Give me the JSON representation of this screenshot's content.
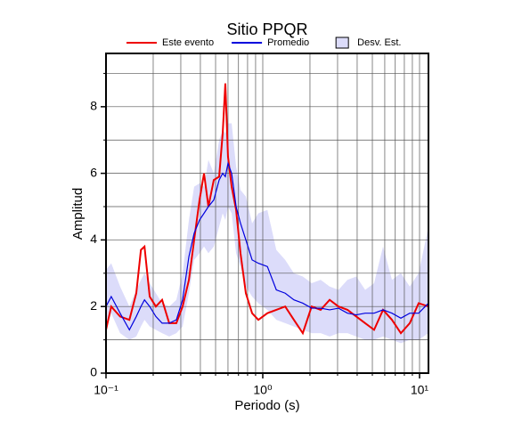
{
  "chart_data": {
    "type": "line",
    "title": "Sitio PPQR",
    "x_label": "Periodo (s)",
    "y_label": "Amplitud",
    "x_scale": "log",
    "grid": true,
    "legend": "top",
    "xlim": [
      0.1,
      11.4
    ],
    "ylim": [
      0,
      9.6
    ],
    "xticks": [
      {
        "value": 0.1,
        "label": "10⁻¹"
      },
      {
        "value": 1,
        "label": "10⁰"
      },
      {
        "value": 10,
        "label": "10¹"
      }
    ],
    "xminor_ticks": [
      0.2,
      0.3,
      0.4,
      0.5,
      0.6,
      0.7,
      0.8,
      0.9,
      2,
      3,
      4,
      5,
      6,
      7,
      8,
      9
    ],
    "yticks": [
      0,
      2,
      4,
      6,
      8
    ],
    "yminor_ticks": [
      1,
      3,
      5,
      7,
      9
    ],
    "x": [
      0.1,
      0.108,
      0.123,
      0.141,
      0.156,
      0.167,
      0.176,
      0.19,
      0.208,
      0.228,
      0.253,
      0.281,
      0.308,
      0.338,
      0.365,
      0.395,
      0.422,
      0.45,
      0.487,
      0.527,
      0.555,
      0.577,
      0.6,
      0.633,
      0.676,
      0.721,
      0.78,
      0.855,
      0.937,
      1.07,
      1.22,
      1.39,
      1.58,
      1.8,
      2.05,
      2.34,
      2.67,
      3.04,
      3.47,
      3.95,
      4.5,
      5.13,
      5.85,
      6.67,
      7.6,
      8.66,
      9.87,
      11.4
    ],
    "band": {
      "name": "Desv. Est.",
      "color": "#dcdcfa",
      "lower": [
        1.3,
        1.8,
        1.2,
        1.0,
        1.1,
        1.4,
        1.6,
        1.4,
        1.3,
        1.2,
        1.1,
        1.2,
        1.4,
        2.4,
        3.4,
        3.6,
        3.8,
        3.6,
        3.8,
        4.4,
        4.8,
        4.6,
        5.0,
        4.8,
        3.6,
        3.2,
        2.6,
        2.3,
        2.1,
        1.9,
        1.6,
        1.5,
        1.4,
        1.3,
        1.2,
        1.2,
        1.1,
        1.2,
        1.2,
        1.1,
        1.0,
        1.0,
        1.1,
        1.0,
        0.9,
        1.0,
        1.0,
        1.2
      ],
      "upper": [
        3.1,
        3.3,
        2.6,
        2.0,
        2.5,
        2.8,
        3.0,
        2.7,
        2.4,
        2.1,
        2.0,
        2.2,
        3.0,
        4.6,
        5.6,
        5.7,
        5.6,
        6.4,
        6.0,
        7.0,
        7.3,
        7.2,
        7.5,
        7.5,
        6.2,
        5.5,
        5.3,
        4.5,
        4.8,
        4.9,
        3.7,
        3.4,
        3.0,
        2.9,
        2.7,
        2.8,
        2.6,
        2.5,
        2.8,
        2.9,
        2.5,
        2.7,
        3.8,
        2.8,
        3.0,
        2.6,
        3.0,
        4.4
      ]
    },
    "series": [
      {
        "name": "Este evento",
        "color": "#ee0000",
        "values": [
          1.3,
          2.0,
          1.7,
          1.6,
          2.4,
          3.7,
          3.8,
          2.3,
          2.0,
          2.2,
          1.5,
          1.5,
          2.0,
          2.8,
          4.0,
          5.2,
          6.0,
          5.0,
          5.8,
          5.9,
          7.2,
          8.7,
          6.5,
          5.6,
          4.9,
          3.6,
          2.4,
          1.8,
          1.6,
          1.8,
          1.9,
          2.0,
          1.6,
          1.2,
          2.0,
          1.9,
          2.2,
          2.0,
          1.9,
          1.7,
          1.5,
          1.3,
          1.9,
          1.6,
          1.2,
          1.5,
          2.1,
          2.0
        ]
      },
      {
        "name": "Promedio",
        "color": "#0000dd",
        "values": [
          2.0,
          2.3,
          1.8,
          1.3,
          1.7,
          2.0,
          2.2,
          2.0,
          1.7,
          1.5,
          1.5,
          1.6,
          2.2,
          3.5,
          4.2,
          4.6,
          4.8,
          5.0,
          5.2,
          5.8,
          6.0,
          5.9,
          6.3,
          6.0,
          5.0,
          4.5,
          4.0,
          3.4,
          3.3,
          3.2,
          2.5,
          2.4,
          2.2,
          2.1,
          1.95,
          1.95,
          1.9,
          1.95,
          1.8,
          1.75,
          1.8,
          1.8,
          1.9,
          1.8,
          1.65,
          1.8,
          1.8,
          2.1
        ]
      }
    ]
  }
}
